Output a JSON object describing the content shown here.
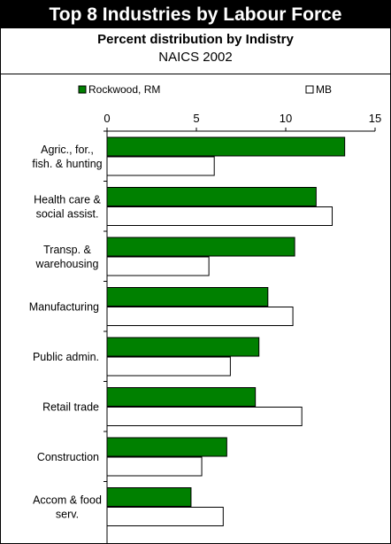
{
  "header": {
    "title": "Top 8 Industries by Labour Force",
    "subtitle": "Percent distribution by Indistry",
    "subtitle2": "NAICS 2002"
  },
  "chart_data": {
    "type": "bar",
    "orientation": "horizontal",
    "title": "Top 8 Industries by Labour Force",
    "subtitle": "Percent distribution by Indistry",
    "xlim": [
      0,
      15
    ],
    "xticks": [
      0,
      5,
      10,
      15
    ],
    "legend_position": "top",
    "categories": [
      [
        "Agric., for.,",
        "fish. & hunting"
      ],
      [
        "Health care &",
        "social assist."
      ],
      [
        "Transp. &",
        "warehousing"
      ],
      [
        "Manufacturing"
      ],
      [
        "Public admin."
      ],
      [
        "Retail trade"
      ],
      [
        "Construction"
      ],
      [
        "Accom & food",
        "serv."
      ]
    ],
    "series": [
      {
        "name": "Rockwood, RM",
        "color": "#008000",
        "values": [
          13.3,
          11.7,
          10.5,
          9.0,
          8.5,
          8.3,
          6.7,
          4.7
        ]
      },
      {
        "name": "MB",
        "color": "#ffffff",
        "values": [
          6.0,
          12.6,
          5.7,
          10.4,
          6.9,
          10.9,
          5.3,
          6.5
        ]
      }
    ]
  }
}
